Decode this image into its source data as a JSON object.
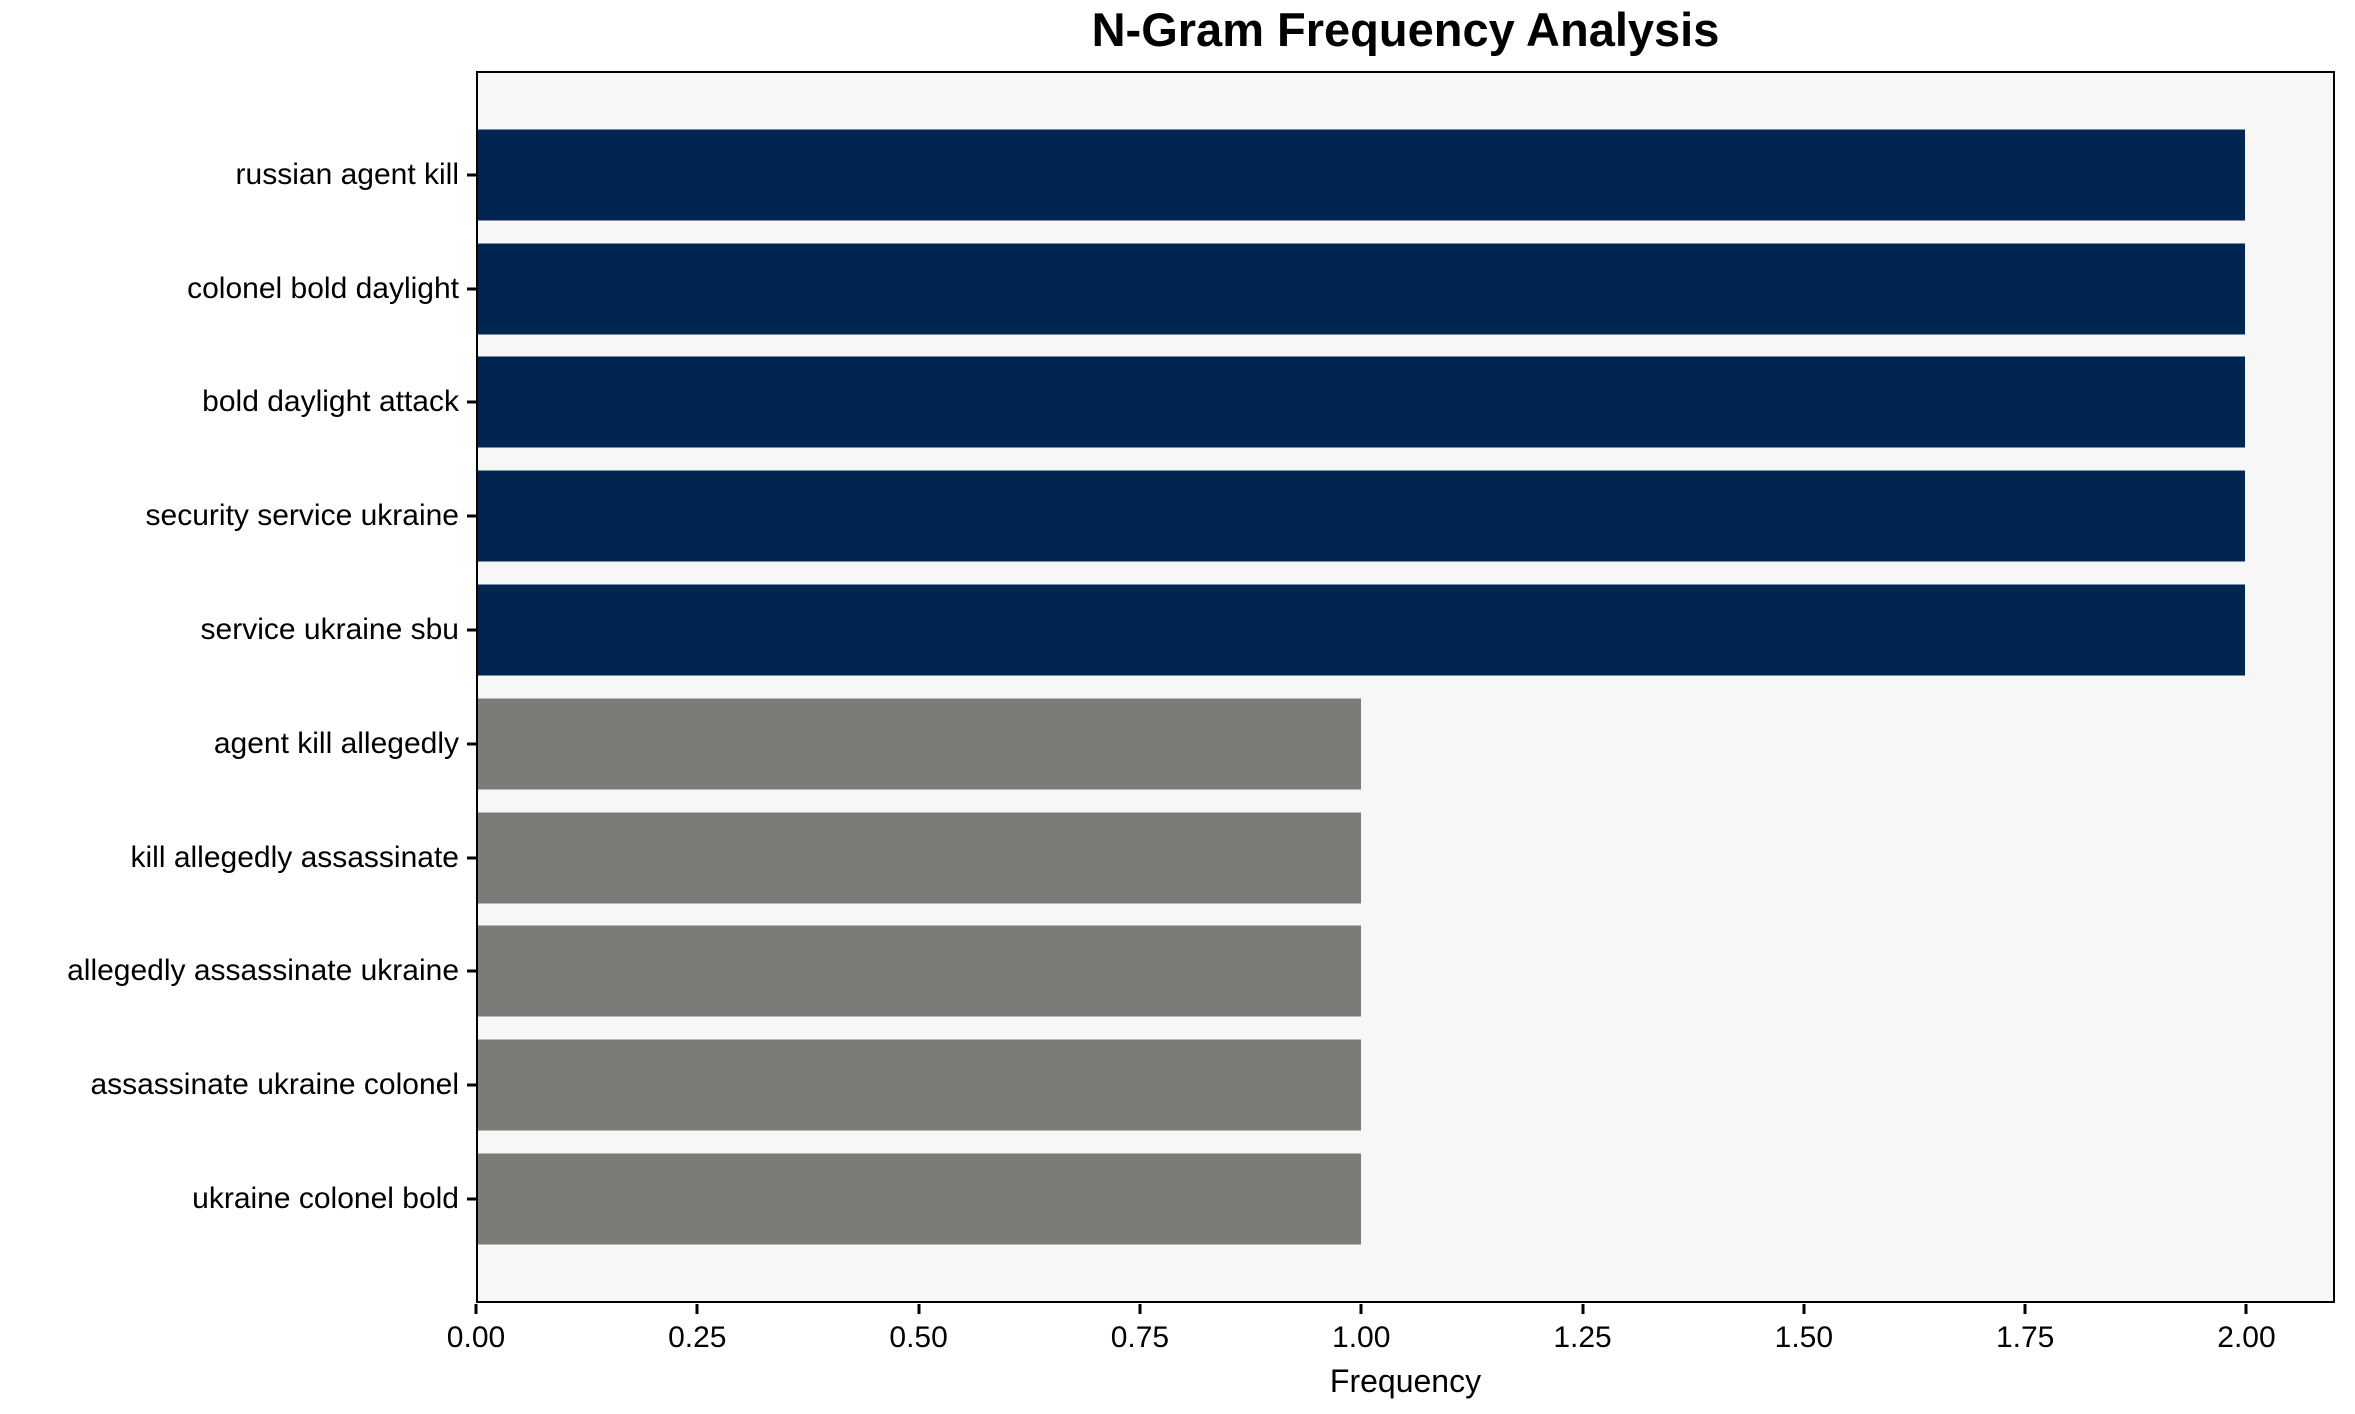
{
  "chart_data": {
    "type": "bar",
    "orientation": "horizontal",
    "title": "N-Gram Frequency Analysis",
    "xlabel": "Frequency",
    "ylabel": "",
    "categories": [
      "russian agent kill",
      "colonel bold daylight",
      "bold daylight attack",
      "security service ukraine",
      "service ukraine sbu",
      "agent kill allegedly",
      "kill allegedly assassinate",
      "allegedly assassinate ukraine",
      "assassinate ukraine colonel",
      "ukraine colonel bold"
    ],
    "values": [
      2,
      2,
      2,
      2,
      2,
      1,
      1,
      1,
      1,
      1
    ],
    "bar_colors": [
      "#002550",
      "#002550",
      "#002550",
      "#002550",
      "#002550",
      "#7b7b78",
      "#7b7b78",
      "#7b7b78",
      "#7b7b78",
      "#7b7b78"
    ],
    "xlim": [
      0,
      2.1
    ],
    "xticks": [
      0.0,
      0.25,
      0.5,
      0.75,
      1.0,
      1.25,
      1.5,
      1.75,
      2.0
    ],
    "xtick_labels": [
      "0.00",
      "0.25",
      "0.50",
      "0.75",
      "1.00",
      "1.25",
      "1.50",
      "1.75",
      "2.00"
    ],
    "grid": false,
    "legend": null,
    "colors": {
      "bar_high": "#002550",
      "bar_low": "#7b7b78",
      "plot_bg": "#f7f7f7",
      "fig_bg": "#ffffff",
      "spine": "#000000",
      "text": "#000000"
    }
  }
}
